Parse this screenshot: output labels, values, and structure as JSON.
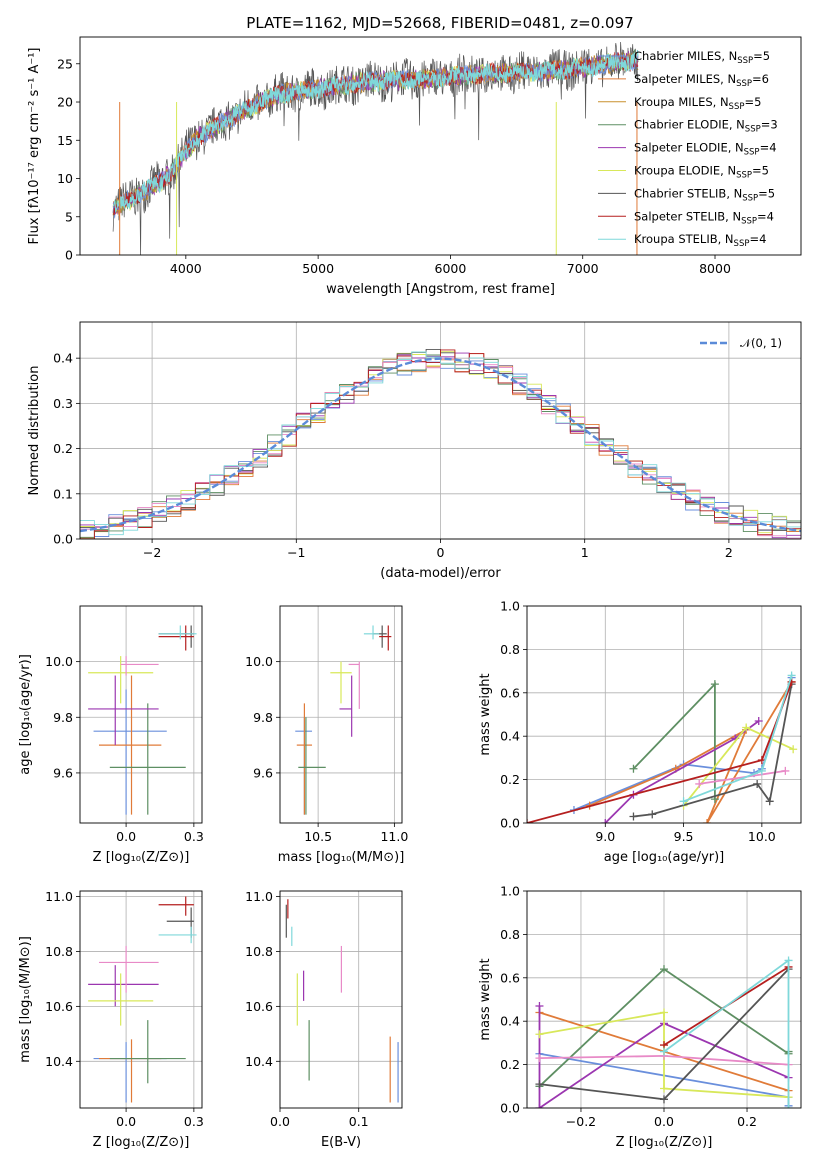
{
  "title": "PLATE=1162, MJD=52668, FIBERID=0481, z=0.097",
  "colors": {
    "Chabrier MILES": "#6a8fdc",
    "Salpeter MILES": "#e07b39",
    "Kroupa MILES": "#c9902e",
    "Chabrier ELODIE": "#5e8f63",
    "Salpeter ELODIE": "#9b36b0",
    "Kroupa ELODIE": "#d8e85a",
    "Chabrier STELIB": "#555555",
    "Salpeter STELIB": "#b51f1f",
    "Kroupa STELIB": "#7fd8da",
    "pink": "#e88ac7",
    "normal": "#5b8bd8"
  },
  "legend_entries": [
    {
      "label": "Chabrier MILES, N",
      "sub": "SSP",
      "tail": "=5",
      "color_key": "Chabrier MILES"
    },
    {
      "label": "Salpeter MILES, N",
      "sub": "SSP",
      "tail": "=6",
      "color_key": "Salpeter MILES"
    },
    {
      "label": "Kroupa MILES, N",
      "sub": "SSP",
      "tail": "=5",
      "color_key": "Kroupa MILES"
    },
    {
      "label": "Chabrier ELODIE, N",
      "sub": "SSP",
      "tail": "=3",
      "color_key": "Chabrier ELODIE"
    },
    {
      "label": "Salpeter ELODIE, N",
      "sub": "SSP",
      "tail": "=4",
      "color_key": "Salpeter ELODIE"
    },
    {
      "label": "Kroupa ELODIE, N",
      "sub": "SSP",
      "tail": "=5",
      "color_key": "Kroupa ELODIE"
    },
    {
      "label": "Chabrier STELIB, N",
      "sub": "SSP",
      "tail": "=5",
      "color_key": "Chabrier STELIB"
    },
    {
      "label": "Salpeter STELIB, N",
      "sub": "SSP",
      "tail": "=4",
      "color_key": "Salpeter STELIB"
    },
    {
      "label": "Kroupa STELIB, N",
      "sub": "SSP",
      "tail": "=4",
      "color_key": "Kroupa STELIB"
    }
  ],
  "chart_data": [
    {
      "id": "spectrum",
      "type": "line",
      "xlabel": "wavelength [Angstrom, rest frame]",
      "ylabel": "Flux [fλ10⁻¹⁷ erg cm⁻² s⁻¹ A⁻¹]",
      "xlim": [
        3200,
        8650
      ],
      "ylim": [
        0,
        28.5
      ],
      "xticks": [
        4000,
        5000,
        6000,
        7000,
        8000
      ],
      "yticks": [
        0,
        5,
        10,
        15,
        20,
        25
      ],
      "grid": false,
      "legend": "top-right",
      "continuum": {
        "x": [
          3450,
          3600,
          3700,
          3800,
          3900,
          4000,
          4100,
          4300,
          4500,
          4700,
          4900,
          5100,
          5300,
          5500,
          5800,
          6100,
          6400,
          6700,
          7000,
          7200,
          7400
        ],
        "y": [
          6,
          7.5,
          8.5,
          9.5,
          11,
          13.5,
          15.5,
          17.5,
          19.5,
          21,
          21.5,
          22,
          22.5,
          22.8,
          23,
          23.5,
          23.8,
          24,
          24.5,
          25,
          25.5
        ]
      },
      "dips": [
        {
          "x": 3930,
          "y": 0
        },
        {
          "x": 6800,
          "y": 0
        },
        {
          "x": 7410,
          "y": 0
        },
        {
          "x": 3500,
          "y": 0
        }
      ]
    },
    {
      "id": "residuals",
      "type": "histogram",
      "xlabel": "(data-model)/error",
      "ylabel": "Normed distribution",
      "xlim": [
        -2.5,
        2.5
      ],
      "ylim": [
        0,
        0.48
      ],
      "xticks": [
        -2,
        -1,
        0,
        1,
        2
      ],
      "yticks": [
        0.0,
        0.1,
        0.2,
        0.3,
        0.4
      ],
      "grid": true,
      "legend": "top-right",
      "reference_label": "𝒩(0, 1)",
      "bin_width": 0.1
    },
    {
      "id": "age-vs-Z",
      "type": "errorbar",
      "xlabel": "Z [log₁₀(Z/Z⊙)]",
      "ylabel": "age  [log₁₀(age/yr)]",
      "xlim": [
        -0.17,
        0.28
      ],
      "ylim": [
        9.42,
        10.2
      ],
      "xticks": [
        0.0,
        0.25
      ],
      "yticks": [
        9.6,
        9.8,
        10.0
      ],
      "grid": true,
      "points": [
        {
          "model": "Chabrier MILES",
          "x": 0.0,
          "y": 9.75,
          "xlo": -0.12,
          "xhi": 0.15,
          "ylo": 9.45,
          "yhi": 9.9
        },
        {
          "model": "Salpeter MILES",
          "x": 0.02,
          "y": 9.7,
          "xlo": -0.1,
          "xhi": 0.13,
          "ylo": 9.45,
          "yhi": 9.95
        },
        {
          "model": "Chabrier ELODIE",
          "x": 0.08,
          "y": 9.62,
          "xlo": -0.06,
          "xhi": 0.22,
          "ylo": 9.45,
          "yhi": 9.85
        },
        {
          "model": "Salpeter ELODIE",
          "x": -0.04,
          "y": 9.83,
          "xlo": -0.14,
          "xhi": 0.12,
          "ylo": 9.7,
          "yhi": 9.95
        },
        {
          "model": "Kroupa ELODIE",
          "x": -0.02,
          "y": 9.96,
          "xlo": -0.14,
          "xhi": 0.1,
          "ylo": 9.85,
          "yhi": 10.02
        },
        {
          "model": "pink",
          "x": 0.0,
          "y": 9.99,
          "xlo": -0.02,
          "xhi": 0.12,
          "ylo": 9.95,
          "yhi": 10.02
        },
        {
          "model": "Chabrier STELIB",
          "x": 0.24,
          "y": 10.1,
          "xlo": 0.12,
          "xhi": 0.25,
          "ylo": 10.05,
          "yhi": 10.13
        },
        {
          "model": "Salpeter STELIB",
          "x": 0.22,
          "y": 10.09,
          "xlo": 0.12,
          "xhi": 0.25,
          "ylo": 10.04,
          "yhi": 10.13
        },
        {
          "model": "Kroupa STELIB",
          "x": 0.2,
          "y": 10.1,
          "xlo": 0.12,
          "xhi": 0.26,
          "ylo": 10.08,
          "yhi": 10.13
        }
      ]
    },
    {
      "id": "age-vs-mass",
      "type": "errorbar",
      "xlabel": "mass [log₁₀(M/M⊙)]",
      "ylabel": "",
      "xlim": [
        10.25,
        11.05
      ],
      "ylim": [
        9.42,
        10.2
      ],
      "xticks": [
        10.5,
        11.0
      ],
      "yticks": [
        9.6,
        9.8,
        10.0
      ],
      "grid": true,
      "points": [
        {
          "model": "Chabrier MILES",
          "x": 10.41,
          "y": 9.75,
          "xlo": 10.35,
          "xhi": 10.46,
          "ylo": 9.45,
          "yhi": 9.8
        },
        {
          "model": "Salpeter MILES",
          "x": 10.41,
          "y": 9.7,
          "xlo": 10.36,
          "xhi": 10.46,
          "ylo": 9.45,
          "yhi": 9.85
        },
        {
          "model": "Chabrier ELODIE",
          "x": 10.42,
          "y": 9.62,
          "xlo": 10.37,
          "xhi": 10.55,
          "ylo": 9.45,
          "yhi": 9.8
        },
        {
          "model": "Salpeter ELODIE",
          "x": 10.72,
          "y": 9.83,
          "xlo": 10.64,
          "xhi": 10.72,
          "ylo": 9.73,
          "yhi": 9.95
        },
        {
          "model": "Kroupa ELODIE",
          "x": 10.65,
          "y": 9.96,
          "xlo": 10.58,
          "xhi": 10.72,
          "ylo": 9.85,
          "yhi": 10.0
        },
        {
          "model": "pink",
          "x": 10.77,
          "y": 9.99,
          "xlo": 10.7,
          "xhi": 10.77,
          "ylo": 9.83,
          "yhi": 10.0
        },
        {
          "model": "Chabrier STELIB",
          "x": 10.92,
          "y": 10.1,
          "xlo": 10.86,
          "xhi": 10.95,
          "ylo": 10.05,
          "yhi": 10.13
        },
        {
          "model": "Salpeter STELIB",
          "x": 10.96,
          "y": 10.09,
          "xlo": 10.9,
          "xhi": 10.98,
          "ylo": 10.04,
          "yhi": 10.13
        },
        {
          "model": "Kroupa STELIB",
          "x": 10.86,
          "y": 10.1,
          "xlo": 10.8,
          "xhi": 10.9,
          "ylo": 10.08,
          "yhi": 10.13
        }
      ]
    },
    {
      "id": "weight-vs-age",
      "type": "line",
      "xlabel": "age  [log₁₀(age/yr)]",
      "ylabel": "mass weight",
      "xlim": [
        8.5,
        10.25
      ],
      "ylim": [
        0,
        1.0
      ],
      "xticks": [
        9.0,
        9.5,
        10.0
      ],
      "yticks": [
        0.0,
        0.2,
        0.4,
        0.6,
        0.8,
        1.0
      ],
      "grid": true,
      "series": [
        {
          "model": "Chabrier MILES",
          "x": [
            8.8,
            9.5,
            9.95,
            10.0,
            10.19
          ],
          "y": [
            0.06,
            0.27,
            0.23,
            0.25,
            0.67
          ]
        },
        {
          "model": "Salpeter MILES",
          "x": [
            8.9,
            9.45,
            9.9,
            9.65,
            10.19
          ],
          "y": [
            0.08,
            0.25,
            0.43,
            0.0,
            0.65
          ]
        },
        {
          "model": "Chabrier ELODIE",
          "x": [
            9.18,
            9.7,
            9.7
          ],
          "y": [
            0.25,
            0.64,
            0.11
          ]
        },
        {
          "model": "Salpeter ELODIE",
          "x": [
            9.0,
            9.18,
            9.83,
            9.98
          ],
          "y": [
            0.0,
            0.13,
            0.39,
            0.47
          ]
        },
        {
          "model": "Kroupa ELODIE",
          "x": [
            9.5,
            9.9,
            10.2
          ],
          "y": [
            0.08,
            0.44,
            0.34
          ]
        },
        {
          "model": "pink",
          "x": [
            9.6,
            10.15
          ],
          "y": [
            0.18,
            0.24
          ]
        },
        {
          "model": "Chabrier STELIB",
          "x": [
            9.18,
            9.3,
            9.97,
            10.05,
            10.19
          ],
          "y": [
            0.03,
            0.04,
            0.18,
            0.1,
            0.64
          ]
        },
        {
          "model": "Salpeter STELIB",
          "x": [
            8.5,
            10.0,
            10.19
          ],
          "y": [
            0.0,
            0.29,
            0.65
          ]
        },
        {
          "model": "Kroupa STELIB",
          "x": [
            9.5,
            10.0,
            10.19
          ],
          "y": [
            0.1,
            0.24,
            0.68
          ]
        }
      ]
    },
    {
      "id": "mass-vs-Z",
      "type": "errorbar",
      "xlabel": "Z [log₁₀(Z/Z⊙)]",
      "ylabel": "mass [log₁₀(M/M⊙)]",
      "xlim": [
        -0.17,
        0.28
      ],
      "ylim": [
        10.23,
        11.02
      ],
      "xticks": [
        0.0,
        0.25
      ],
      "yticks": [
        10.4,
        10.6,
        10.8,
        11.0
      ],
      "grid": true,
      "points": [
        {
          "model": "Chabrier MILES",
          "x": 0.0,
          "y": 10.41,
          "xlo": -0.12,
          "xhi": 0.15,
          "ylo": 10.25,
          "yhi": 10.47
        },
        {
          "model": "Salpeter MILES",
          "x": 0.02,
          "y": 10.41,
          "xlo": -0.1,
          "xhi": 0.13,
          "ylo": 10.25,
          "yhi": 10.48
        },
        {
          "model": "Chabrier ELODIE",
          "x": 0.08,
          "y": 10.41,
          "xlo": -0.06,
          "xhi": 0.22,
          "ylo": 10.32,
          "yhi": 10.55
        },
        {
          "model": "Salpeter ELODIE",
          "x": -0.04,
          "y": 10.68,
          "xlo": -0.14,
          "xhi": 0.12,
          "ylo": 10.6,
          "yhi": 10.75
        },
        {
          "model": "Kroupa ELODIE",
          "x": -0.02,
          "y": 10.62,
          "xlo": -0.14,
          "xhi": 0.1,
          "ylo": 10.53,
          "yhi": 10.72
        },
        {
          "model": "pink",
          "x": 0.0,
          "y": 10.76,
          "xlo": -0.1,
          "xhi": 0.12,
          "ylo": 10.65,
          "yhi": 10.82
        },
        {
          "model": "Chabrier STELIB",
          "x": 0.24,
          "y": 10.91,
          "xlo": 0.15,
          "xhi": 0.25,
          "ylo": 10.85,
          "yhi": 10.96
        },
        {
          "model": "Salpeter STELIB",
          "x": 0.22,
          "y": 10.97,
          "xlo": 0.12,
          "xhi": 0.25,
          "ylo": 10.93,
          "yhi": 11.0
        },
        {
          "model": "Kroupa STELIB",
          "x": 0.24,
          "y": 10.86,
          "xlo": 0.12,
          "xhi": 0.26,
          "ylo": 10.83,
          "yhi": 10.89
        }
      ]
    },
    {
      "id": "mass-vs-ebv",
      "type": "errorbar",
      "xlabel": "E(B-V)",
      "ylabel": "",
      "xlim": [
        0.0,
        0.155
      ],
      "ylim": [
        10.23,
        11.02
      ],
      "xticks": [
        0.0,
        0.1
      ],
      "yticks": [
        10.4,
        10.6,
        10.8,
        11.0
      ],
      "grid": true,
      "points": [
        {
          "model": "Chabrier MILES",
          "x": 0.15,
          "y": 10.41,
          "xlo": 0.15,
          "xhi": 0.15,
          "ylo": 10.25,
          "yhi": 10.47
        },
        {
          "model": "Salpeter MILES",
          "x": 0.14,
          "y": 10.41,
          "xlo": 0.14,
          "xhi": 0.14,
          "ylo": 10.25,
          "yhi": 10.49
        },
        {
          "model": "Chabrier ELODIE",
          "x": 0.037,
          "y": 10.43,
          "xlo": 0.037,
          "xhi": 0.037,
          "ylo": 10.33,
          "yhi": 10.55
        },
        {
          "model": "Salpeter ELODIE",
          "x": 0.03,
          "y": 10.68,
          "xlo": 0.03,
          "xhi": 0.03,
          "ylo": 10.62,
          "yhi": 10.73
        },
        {
          "model": "Kroupa ELODIE",
          "x": 0.022,
          "y": 10.62,
          "xlo": 0.022,
          "xhi": 0.022,
          "ylo": 10.53,
          "yhi": 10.72
        },
        {
          "model": "pink",
          "x": 0.078,
          "y": 10.76,
          "xlo": 0.078,
          "xhi": 0.078,
          "ylo": 10.65,
          "yhi": 10.82
        },
        {
          "model": "Chabrier STELIB",
          "x": 0.008,
          "y": 10.91,
          "xlo": 0.008,
          "xhi": 0.008,
          "ylo": 10.85,
          "yhi": 10.97
        },
        {
          "model": "Salpeter STELIB",
          "x": 0.01,
          "y": 10.96,
          "xlo": 0.01,
          "xhi": 0.01,
          "ylo": 10.92,
          "yhi": 10.99
        },
        {
          "model": "Kroupa STELIB",
          "x": 0.015,
          "y": 10.86,
          "xlo": 0.015,
          "xhi": 0.015,
          "ylo": 10.82,
          "yhi": 10.89
        }
      ]
    },
    {
      "id": "weight-vs-Z",
      "type": "line",
      "xlabel": "Z [log₁₀(Z/Z⊙)]",
      "ylabel": "mass weight",
      "xlim": [
        -0.33,
        0.33
      ],
      "ylim": [
        0,
        1.0
      ],
      "xticks": [
        -0.2,
        0.0,
        0.2
      ],
      "yticks": [
        0.0,
        0.2,
        0.4,
        0.6,
        0.8,
        1.0
      ],
      "grid": true,
      "series": [
        {
          "model": "Chabrier MILES",
          "x": [
            -0.3,
            0.3,
            0.3
          ],
          "y": [
            0.25,
            0.05,
            0.01
          ]
        },
        {
          "model": "Salpeter MILES",
          "x": [
            -0.3,
            0.3
          ],
          "y": [
            0.44,
            0.08
          ]
        },
        {
          "model": "Chabrier ELODIE",
          "x": [
            -0.3,
            0.0,
            0.3,
            0.3
          ],
          "y": [
            0.1,
            0.64,
            0.25,
            0.26
          ]
        },
        {
          "model": "Salpeter ELODIE",
          "x": [
            -0.3,
            -0.3,
            0.0,
            0.3
          ],
          "y": [
            0.47,
            0.0,
            0.39,
            0.14
          ]
        },
        {
          "model": "Kroupa ELODIE",
          "x": [
            -0.3,
            0.0,
            0.0,
            0.3
          ],
          "y": [
            0.34,
            0.44,
            0.09,
            0.05
          ]
        },
        {
          "model": "pink",
          "x": [
            -0.3,
            0.0,
            0.3
          ],
          "y": [
            0.23,
            0.24,
            0.2
          ]
        },
        {
          "model": "Chabrier STELIB",
          "x": [
            -0.3,
            0.0,
            0.3
          ],
          "y": [
            0.11,
            0.04,
            0.64
          ]
        },
        {
          "model": "Salpeter STELIB",
          "x": [
            0.0,
            0.3
          ],
          "y": [
            0.29,
            0.65
          ]
        },
        {
          "model": "Kroupa STELIB",
          "x": [
            0.0,
            0.3,
            0.3
          ],
          "y": [
            0.26,
            0.68,
            0.0
          ]
        }
      ]
    }
  ]
}
